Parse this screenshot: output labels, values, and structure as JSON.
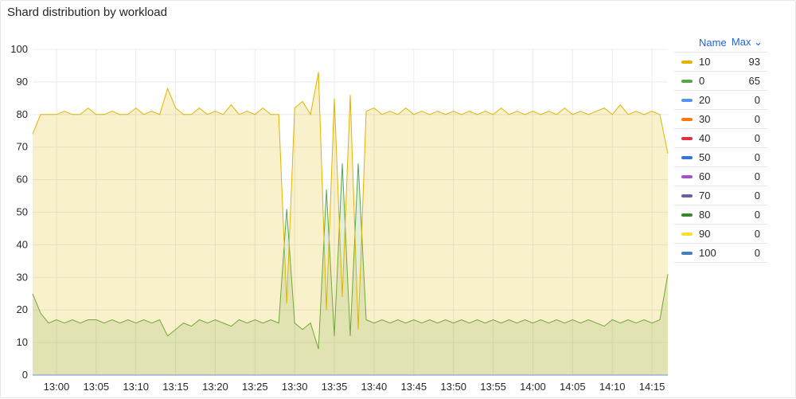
{
  "panel": {
    "title": "Shard distribution by workload"
  },
  "legend": {
    "name_header": "Name",
    "max_header": "Max ⌄",
    "items": [
      {
        "name": "10",
        "max": "93",
        "color": "#e0b400"
      },
      {
        "name": "0",
        "max": "65",
        "color": "#56a64b"
      },
      {
        "name": "20",
        "max": "0",
        "color": "#5794f2"
      },
      {
        "name": "30",
        "max": "0",
        "color": "#ff780a"
      },
      {
        "name": "40",
        "max": "0",
        "color": "#e02f44"
      },
      {
        "name": "50",
        "max": "0",
        "color": "#3274d9"
      },
      {
        "name": "60",
        "max": "0",
        "color": "#a352cc"
      },
      {
        "name": "70",
        "max": "0",
        "color": "#705da0"
      },
      {
        "name": "80",
        "max": "0",
        "color": "#37872d"
      },
      {
        "name": "90",
        "max": "0",
        "color": "#fade2a"
      },
      {
        "name": "100",
        "max": "0",
        "color": "#447ebc"
      }
    ]
  },
  "chart_data": {
    "type": "area",
    "title": "Shard distribution by workload",
    "ylim": [
      0,
      100
    ],
    "y_ticks": [
      "0",
      "10",
      "20",
      "30",
      "40",
      "50",
      "60",
      "70",
      "80",
      "90",
      "100"
    ],
    "x_ticks": [
      "13:00",
      "13:05",
      "13:10",
      "13:15",
      "13:20",
      "13:25",
      "13:30",
      "13:35",
      "13:40",
      "13:45",
      "13:50",
      "13:55",
      "14:00",
      "14:05",
      "14:10",
      "14:15"
    ],
    "x_range": [
      "12:57",
      "14:17"
    ],
    "grid": true,
    "legend_placement": "right",
    "series": [
      {
        "name": "10",
        "color": "#e0b400",
        "points": [
          [
            "12:57",
            74
          ],
          [
            "12:58",
            80
          ],
          [
            "12:59",
            80
          ],
          [
            "13:00",
            80
          ],
          [
            "13:01",
            81
          ],
          [
            "13:02",
            80
          ],
          [
            "13:03",
            80
          ],
          [
            "13:04",
            82
          ],
          [
            "13:05",
            80
          ],
          [
            "13:06",
            80
          ],
          [
            "13:07",
            81
          ],
          [
            "13:08",
            80
          ],
          [
            "13:09",
            80
          ],
          [
            "13:10",
            82
          ],
          [
            "13:11",
            80
          ],
          [
            "13:12",
            81
          ],
          [
            "13:13",
            80
          ],
          [
            "13:14",
            88
          ],
          [
            "13:15",
            82
          ],
          [
            "13:16",
            80
          ],
          [
            "13:17",
            80
          ],
          [
            "13:18",
            82
          ],
          [
            "13:19",
            80
          ],
          [
            "13:20",
            81
          ],
          [
            "13:21",
            80
          ],
          [
            "13:22",
            83
          ],
          [
            "13:23",
            80
          ],
          [
            "13:24",
            81
          ],
          [
            "13:25",
            80
          ],
          [
            "13:26",
            82
          ],
          [
            "13:27",
            80
          ],
          [
            "13:28",
            80
          ],
          [
            "13:29",
            22
          ],
          [
            "13:30",
            82
          ],
          [
            "13:31",
            84
          ],
          [
            "13:32",
            80
          ],
          [
            "13:33",
            93
          ],
          [
            "13:34",
            20
          ],
          [
            "13:35",
            85
          ],
          [
            "13:36",
            24
          ],
          [
            "13:37",
            86
          ],
          [
            "13:38",
            14
          ],
          [
            "13:39",
            81
          ],
          [
            "13:40",
            82
          ],
          [
            "13:41",
            80
          ],
          [
            "13:42",
            81
          ],
          [
            "13:43",
            80
          ],
          [
            "13:44",
            82
          ],
          [
            "13:45",
            80
          ],
          [
            "13:46",
            81
          ],
          [
            "13:47",
            80
          ],
          [
            "13:48",
            81
          ],
          [
            "13:49",
            80
          ],
          [
            "13:50",
            81
          ],
          [
            "13:51",
            80
          ],
          [
            "13:52",
            81
          ],
          [
            "13:53",
            80
          ],
          [
            "13:54",
            81
          ],
          [
            "13:55",
            80
          ],
          [
            "13:56",
            82
          ],
          [
            "13:57",
            80
          ],
          [
            "13:58",
            81
          ],
          [
            "13:59",
            80
          ],
          [
            "14:00",
            81
          ],
          [
            "14:01",
            80
          ],
          [
            "14:02",
            81
          ],
          [
            "14:03",
            80
          ],
          [
            "14:04",
            82
          ],
          [
            "14:05",
            80
          ],
          [
            "14:06",
            81
          ],
          [
            "14:07",
            80
          ],
          [
            "14:08",
            81
          ],
          [
            "14:09",
            82
          ],
          [
            "14:10",
            80
          ],
          [
            "14:11",
            83
          ],
          [
            "14:12",
            80
          ],
          [
            "14:13",
            81
          ],
          [
            "14:14",
            80
          ],
          [
            "14:15",
            81
          ],
          [
            "14:16",
            80
          ],
          [
            "14:17",
            68
          ]
        ]
      },
      {
        "name": "0",
        "color": "#56a64b",
        "points": [
          [
            "12:57",
            25
          ],
          [
            "12:58",
            19
          ],
          [
            "12:59",
            16
          ],
          [
            "13:00",
            17
          ],
          [
            "13:01",
            16
          ],
          [
            "13:02",
            17
          ],
          [
            "13:03",
            16
          ],
          [
            "13:04",
            17
          ],
          [
            "13:05",
            17
          ],
          [
            "13:06",
            16
          ],
          [
            "13:07",
            17
          ],
          [
            "13:08",
            16
          ],
          [
            "13:09",
            17
          ],
          [
            "13:10",
            16
          ],
          [
            "13:11",
            17
          ],
          [
            "13:12",
            16
          ],
          [
            "13:13",
            17
          ],
          [
            "13:14",
            12
          ],
          [
            "13:15",
            14
          ],
          [
            "13:16",
            16
          ],
          [
            "13:17",
            15
          ],
          [
            "13:18",
            17
          ],
          [
            "13:19",
            16
          ],
          [
            "13:20",
            17
          ],
          [
            "13:21",
            16
          ],
          [
            "13:22",
            15
          ],
          [
            "13:23",
            17
          ],
          [
            "13:24",
            16
          ],
          [
            "13:25",
            17
          ],
          [
            "13:26",
            16
          ],
          [
            "13:27",
            17
          ],
          [
            "13:28",
            16
          ],
          [
            "13:29",
            51
          ],
          [
            "13:30",
            16
          ],
          [
            "13:31",
            14
          ],
          [
            "13:32",
            16
          ],
          [
            "13:33",
            8
          ],
          [
            "13:34",
            57
          ],
          [
            "13:35",
            12
          ],
          [
            "13:36",
            65
          ],
          [
            "13:37",
            12
          ],
          [
            "13:38",
            65
          ],
          [
            "13:39",
            17
          ],
          [
            "13:40",
            16
          ],
          [
            "13:41",
            17
          ],
          [
            "13:42",
            16
          ],
          [
            "13:43",
            17
          ],
          [
            "13:44",
            16
          ],
          [
            "13:45",
            17
          ],
          [
            "13:46",
            16
          ],
          [
            "13:47",
            17
          ],
          [
            "13:48",
            16
          ],
          [
            "13:49",
            17
          ],
          [
            "13:50",
            16
          ],
          [
            "13:51",
            17
          ],
          [
            "13:52",
            16
          ],
          [
            "13:53",
            17
          ],
          [
            "13:54",
            16
          ],
          [
            "13:55",
            17
          ],
          [
            "13:56",
            16
          ],
          [
            "13:57",
            17
          ],
          [
            "13:58",
            16
          ],
          [
            "13:59",
            17
          ],
          [
            "14:00",
            16
          ],
          [
            "14:01",
            17
          ],
          [
            "14:02",
            16
          ],
          [
            "14:03",
            17
          ],
          [
            "14:04",
            16
          ],
          [
            "14:05",
            17
          ],
          [
            "14:06",
            16
          ],
          [
            "14:07",
            17
          ],
          [
            "14:08",
            16
          ],
          [
            "14:09",
            15
          ],
          [
            "14:10",
            17
          ],
          [
            "14:11",
            16
          ],
          [
            "14:12",
            17
          ],
          [
            "14:13",
            16
          ],
          [
            "14:14",
            17
          ],
          [
            "14:15",
            16
          ],
          [
            "14:16",
            17
          ],
          [
            "14:17",
            31
          ]
        ]
      },
      {
        "name": "20",
        "color": "#5794f2",
        "points": [
          [
            "12:57",
            0
          ],
          [
            "14:17",
            0
          ]
        ]
      },
      {
        "name": "30",
        "color": "#ff780a",
        "points": [
          [
            "12:57",
            0
          ],
          [
            "14:17",
            0
          ]
        ]
      },
      {
        "name": "40",
        "color": "#e02f44",
        "points": [
          [
            "12:57",
            0
          ],
          [
            "14:17",
            0
          ]
        ]
      },
      {
        "name": "50",
        "color": "#3274d9",
        "points": [
          [
            "12:57",
            0
          ],
          [
            "14:17",
            0
          ]
        ]
      },
      {
        "name": "60",
        "color": "#a352cc",
        "points": [
          [
            "12:57",
            0
          ],
          [
            "14:17",
            0
          ]
        ]
      },
      {
        "name": "70",
        "color": "#705da0",
        "points": [
          [
            "12:57",
            0
          ],
          [
            "14:17",
            0
          ]
        ]
      },
      {
        "name": "80",
        "color": "#37872d",
        "points": [
          [
            "12:57",
            0
          ],
          [
            "14:17",
            0
          ]
        ]
      },
      {
        "name": "90",
        "color": "#fade2a",
        "points": [
          [
            "12:57",
            0
          ],
          [
            "14:17",
            0
          ]
        ]
      },
      {
        "name": "100",
        "color": "#447ebc",
        "points": [
          [
            "12:57",
            0
          ],
          [
            "14:17",
            0
          ]
        ]
      }
    ]
  }
}
